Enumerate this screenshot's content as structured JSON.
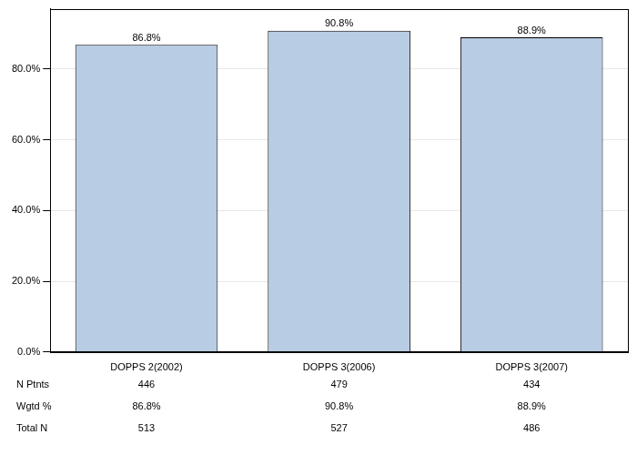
{
  "chart_data": {
    "type": "bar",
    "categories": [
      "DOPPS 2(2002)",
      "DOPPS 3(2006)",
      "DOPPS 3(2007)"
    ],
    "values": [
      86.8,
      90.8,
      88.9
    ],
    "value_labels": [
      "86.8%",
      "90.8%",
      "88.9%"
    ],
    "color": "#b8cce4",
    "ylim": [
      0,
      97
    ],
    "yticks": [
      {
        "value": 0,
        "label": "0.0%"
      },
      {
        "value": 20,
        "label": "20.0%"
      },
      {
        "value": 40,
        "label": "40.0%"
      },
      {
        "value": 60,
        "label": "60.0%"
      },
      {
        "value": 80,
        "label": "80.0%"
      }
    ],
    "grid": true,
    "data_labels": true,
    "table": {
      "rows": [
        {
          "label": "N Ptnts",
          "values": [
            446,
            479,
            434
          ]
        },
        {
          "label": "Wgtd %",
          "values": [
            "86.8%",
            "90.8%",
            "88.9%"
          ]
        },
        {
          "label": "Total N",
          "values": [
            513,
            527,
            486
          ]
        }
      ]
    }
  }
}
